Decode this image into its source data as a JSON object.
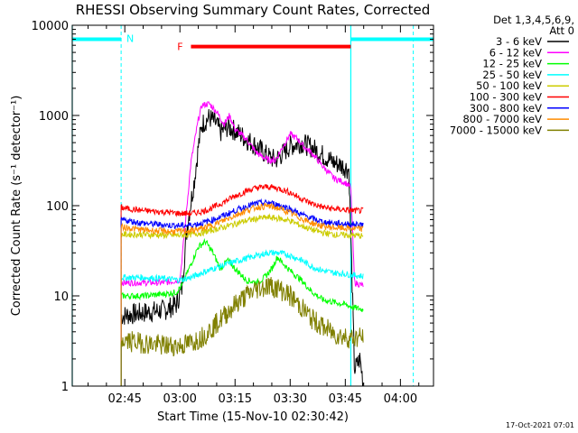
{
  "chart_data": {
    "type": "line",
    "title": "RHESSI Observing Summary Count Rates, Corrected",
    "xlabel": "Start Time (15-Nov-10 02:30:42)",
    "ylabel": "Corrected Count Rate (s⁻¹ detector⁻¹)",
    "yscale": "log",
    "ylim": [
      1,
      10000
    ],
    "xlim_minutes_after_0230": [
      0.7,
      99
    ],
    "x_ticks": [
      {
        "label": "02:45",
        "min": 15
      },
      {
        "label": "03:00",
        "min": 30
      },
      {
        "label": "03:15",
        "min": 45
      },
      {
        "label": "03:30",
        "min": 60
      },
      {
        "label": "03:45",
        "min": 75
      },
      {
        "label": "04:00",
        "min": 90
      }
    ],
    "y_ticks": [
      {
        "label": "1",
        "value": 1
      },
      {
        "label": "10",
        "value": 10
      },
      {
        "label": "100",
        "value": 100
      },
      {
        "label": "1000",
        "value": 1000
      },
      {
        "label": "10000",
        "value": 10000
      }
    ],
    "legend_header": [
      "Det 1,3,4,5,6,9,",
      "Att 0"
    ],
    "legend_position": "right",
    "series": [
      {
        "name": "3 - 6 keV",
        "color": "#000000",
        "points": [
          [
            14,
            6
          ],
          [
            20,
            6.5
          ],
          [
            26,
            7
          ],
          [
            29,
            8
          ],
          [
            30.5,
            12
          ],
          [
            32,
            60
          ],
          [
            34,
            200
          ],
          [
            35,
            450
          ],
          [
            36,
            800
          ],
          [
            38,
            950
          ],
          [
            40,
            800
          ],
          [
            41,
            650
          ],
          [
            43,
            750
          ],
          [
            45,
            680
          ],
          [
            48,
            550
          ],
          [
            51,
            450
          ],
          [
            54,
            350
          ],
          [
            56,
            320
          ],
          [
            58,
            380
          ],
          [
            60,
            460
          ],
          [
            63,
            500
          ],
          [
            66,
            440
          ],
          [
            69,
            360
          ],
          [
            72,
            300
          ],
          [
            74,
            280
          ],
          [
            76,
            250
          ],
          [
            77.5,
            1.5
          ],
          [
            79,
            2
          ],
          [
            80,
            1
          ]
        ]
      },
      {
        "name": "6 - 12 keV",
        "color": "#ff00ff",
        "points": [
          [
            14,
            14
          ],
          [
            20,
            14
          ],
          [
            26,
            14
          ],
          [
            28,
            14.5
          ],
          [
            30,
            15
          ],
          [
            31,
            40
          ],
          [
            33,
            300
          ],
          [
            35,
            900
          ],
          [
            36,
            1300
          ],
          [
            38,
            1350
          ],
          [
            40,
            1100
          ],
          [
            42,
            800
          ],
          [
            43.5,
            1000
          ],
          [
            45,
            700
          ],
          [
            48,
            550
          ],
          [
            51,
            380
          ],
          [
            54,
            320
          ],
          [
            56,
            320
          ],
          [
            58,
            450
          ],
          [
            60,
            620
          ],
          [
            62,
            550
          ],
          [
            64,
            440
          ],
          [
            66,
            380
          ],
          [
            69,
            270
          ],
          [
            72,
            200
          ],
          [
            75,
            180
          ],
          [
            76.5,
            160
          ],
          [
            77.5,
            14
          ],
          [
            80,
            13
          ]
        ]
      },
      {
        "name": "12 - 25 keV",
        "color": "#00ff00",
        "points": [
          [
            14,
            10
          ],
          [
            20,
            10
          ],
          [
            26,
            10.5
          ],
          [
            29,
            11
          ],
          [
            30.5,
            13
          ],
          [
            32,
            18
          ],
          [
            34,
            28
          ],
          [
            35,
            35
          ],
          [
            37,
            40
          ],
          [
            39,
            30
          ],
          [
            41,
            20
          ],
          [
            43,
            25
          ],
          [
            45,
            20
          ],
          [
            48,
            15
          ],
          [
            51,
            14
          ],
          [
            53,
            16
          ],
          [
            55,
            20
          ],
          [
            56.5,
            27
          ],
          [
            58,
            23
          ],
          [
            60,
            19
          ],
          [
            63,
            15
          ],
          [
            66,
            11
          ],
          [
            69,
            9
          ],
          [
            72,
            8.5
          ],
          [
            75,
            8
          ],
          [
            77,
            7.5
          ],
          [
            80,
            7
          ]
        ]
      },
      {
        "name": "25 - 50 keV",
        "color": "#00ffff",
        "points": [
          [
            14,
            16
          ],
          [
            20,
            16
          ],
          [
            26,
            15.5
          ],
          [
            30,
            15
          ],
          [
            33,
            16
          ],
          [
            36,
            18
          ],
          [
            39,
            20
          ],
          [
            42,
            22
          ],
          [
            45,
            24
          ],
          [
            48,
            26
          ],
          [
            51,
            28
          ],
          [
            54,
            30
          ],
          [
            57,
            30
          ],
          [
            60,
            28
          ],
          [
            63,
            25
          ],
          [
            66,
            21
          ],
          [
            69,
            19
          ],
          [
            72,
            18
          ],
          [
            75,
            17.5
          ],
          [
            77,
            17
          ],
          [
            80,
            16.5
          ]
        ]
      },
      {
        "name": "50 - 100 keV",
        "color": "#cccc00",
        "points": [
          [
            14,
            48
          ],
          [
            20,
            48
          ],
          [
            26,
            47
          ],
          [
            30,
            47
          ],
          [
            33,
            48
          ],
          [
            36,
            50
          ],
          [
            39,
            54
          ],
          [
            42,
            58
          ],
          [
            45,
            63
          ],
          [
            48,
            68
          ],
          [
            51,
            72
          ],
          [
            54,
            74
          ],
          [
            57,
            72
          ],
          [
            60,
            68
          ],
          [
            63,
            60
          ],
          [
            66,
            54
          ],
          [
            69,
            50
          ],
          [
            72,
            48
          ],
          [
            75,
            47
          ],
          [
            77,
            47
          ],
          [
            80,
            46
          ]
        ]
      },
      {
        "name": "100 - 300 keV",
        "color": "#ff0000",
        "points": [
          [
            14,
            95
          ],
          [
            20,
            88
          ],
          [
            26,
            85
          ],
          [
            30,
            82
          ],
          [
            33,
            82
          ],
          [
            36,
            86
          ],
          [
            39,
            95
          ],
          [
            42,
            110
          ],
          [
            45,
            128
          ],
          [
            48,
            145
          ],
          [
            51,
            158
          ],
          [
            54,
            162
          ],
          [
            57,
            155
          ],
          [
            60,
            140
          ],
          [
            63,
            120
          ],
          [
            66,
            105
          ],
          [
            69,
            96
          ],
          [
            72,
            92
          ],
          [
            75,
            90
          ],
          [
            77,
            88
          ],
          [
            80,
            88
          ]
        ]
      },
      {
        "name": "300 - 800 keV",
        "color": "#0000ff",
        "points": [
          [
            14,
            70
          ],
          [
            20,
            64
          ],
          [
            26,
            61
          ],
          [
            30,
            60
          ],
          [
            33,
            61
          ],
          [
            36,
            64
          ],
          [
            39,
            70
          ],
          [
            42,
            78
          ],
          [
            45,
            88
          ],
          [
            48,
            98
          ],
          [
            51,
            106
          ],
          [
            54,
            108
          ],
          [
            57,
            102
          ],
          [
            60,
            92
          ],
          [
            63,
            80
          ],
          [
            66,
            72
          ],
          [
            69,
            66
          ],
          [
            72,
            64
          ],
          [
            75,
            63
          ],
          [
            77,
            62
          ],
          [
            80,
            62
          ]
        ]
      },
      {
        "name": "800 - 7000 keV",
        "color": "#ff8c00",
        "points": [
          [
            14,
            58
          ],
          [
            20,
            54
          ],
          [
            26,
            52
          ],
          [
            30,
            52
          ],
          [
            33,
            53
          ],
          [
            36,
            56
          ],
          [
            39,
            61
          ],
          [
            42,
            69
          ],
          [
            45,
            78
          ],
          [
            48,
            88
          ],
          [
            51,
            96
          ],
          [
            54,
            99
          ],
          [
            57,
            93
          ],
          [
            60,
            83
          ],
          [
            63,
            72
          ],
          [
            66,
            64
          ],
          [
            69,
            59
          ],
          [
            72,
            57
          ],
          [
            75,
            56
          ],
          [
            77,
            56
          ],
          [
            80,
            55
          ]
        ]
      },
      {
        "name": "7000 - 15000 keV",
        "color": "#808000",
        "points": [
          [
            14,
            3.2
          ],
          [
            20,
            3
          ],
          [
            26,
            2.8
          ],
          [
            30,
            2.8
          ],
          [
            33,
            3
          ],
          [
            36,
            3.5
          ],
          [
            39,
            4.5
          ],
          [
            42,
            6
          ],
          [
            45,
            8
          ],
          [
            48,
            10
          ],
          [
            51,
            12
          ],
          [
            54,
            13
          ],
          [
            57,
            12
          ],
          [
            60,
            10
          ],
          [
            63,
            7.5
          ],
          [
            66,
            5.5
          ],
          [
            69,
            4.5
          ],
          [
            72,
            3.8
          ],
          [
            75,
            3.5
          ],
          [
            77,
            3.4
          ],
          [
            80,
            3.5
          ]
        ]
      }
    ],
    "annotations": {
      "N": {
        "label": "N",
        "color": "#00ffff"
      },
      "F": {
        "label": "F",
        "color": "#ff0000"
      }
    },
    "night_bar": {
      "color": "#00ffff",
      "level": 7000,
      "spans": [
        [
          0.7,
          14
        ],
        [
          76.5,
          99
        ]
      ]
    },
    "flare_bar": {
      "color": "#ff0000",
      "level": 5800,
      "span": [
        33,
        76.5
      ]
    },
    "boundary_lines": {
      "color": "#00ffff",
      "solid_min": [
        0.7,
        76.5
      ],
      "dashed_min": [
        14,
        93.5
      ]
    }
  },
  "footer_date": "17-Oct-2021 07:01"
}
